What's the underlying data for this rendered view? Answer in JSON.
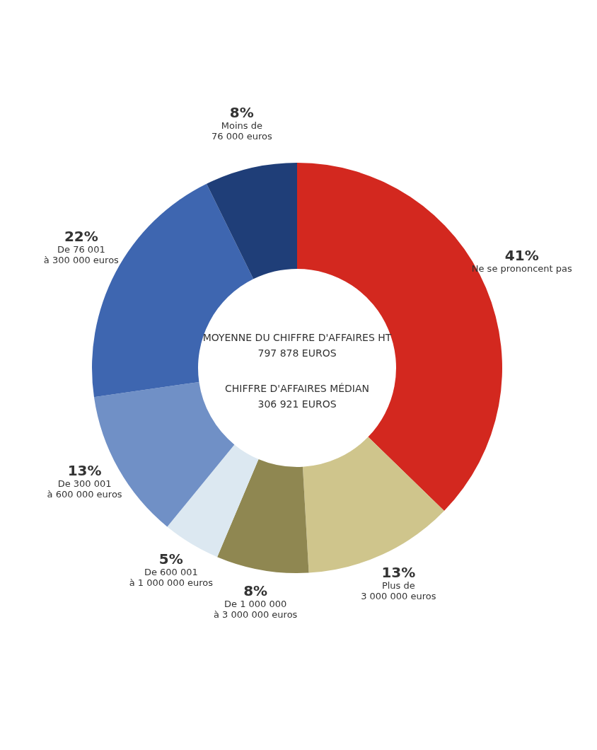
{
  "chart_data": {
    "type": "donut",
    "categories": [
      "Ne se prononcent pas",
      "Plus de\n3 000 000 euros",
      "De 1 000 000\nà 3 000 000 euros",
      "De 600 001\nà 1 000 000 euros",
      "De 300 001\nà 600 000 euros",
      "De 76 001\nà 300 000 euros",
      "Moins de\n76 000 euros"
    ],
    "values": [
      41,
      13,
      8,
      5,
      13,
      22,
      8
    ],
    "value_labels": [
      "41%",
      "13%",
      "8%",
      "5%",
      "13%",
      "22%",
      "8%"
    ],
    "colors": [
      "#d3281f",
      "#cfc58c",
      "#8f8751",
      "#dce8f1",
      "#7090c6",
      "#3e66b0",
      "#1f3e78"
    ],
    "annotations": [
      "MOYENNE DU CHIFFRE D'AFFAIRES HT",
      "797 878 EUROS",
      "CHIFFRE D'AFFAIRES MÉDIAN",
      "306 921 EUROS"
    ]
  }
}
